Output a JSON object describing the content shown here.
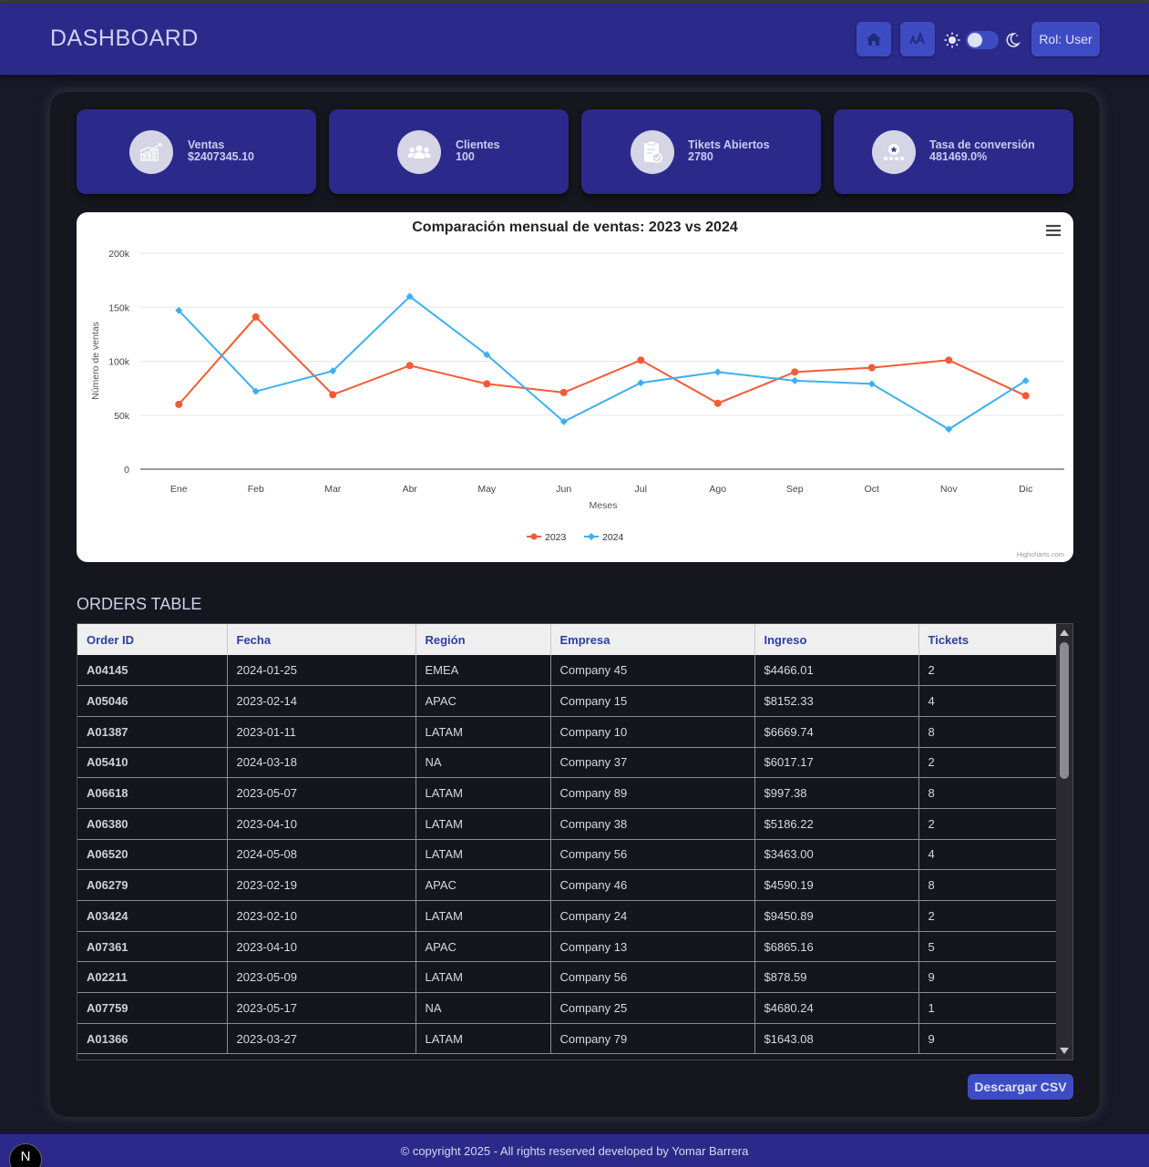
{
  "header": {
    "title": "DASHBOARD",
    "home_icon": "home-icon",
    "font_icon": "font-size-icon",
    "sun_icon": "sun-icon",
    "moon_icon": "moon-icon",
    "role_label": "Rol: User"
  },
  "cards": [
    {
      "label": "Ventas",
      "value": "$2407345.10",
      "icon": "chart-growth-icon"
    },
    {
      "label": "Clientes",
      "value": "100",
      "icon": "users-icon"
    },
    {
      "label": "Tikets Abiertos",
      "value": "2780",
      "icon": "clipboard-check-icon"
    },
    {
      "label": "Tasa de conversión",
      "value": "481469.0%",
      "icon": "conversion-icon"
    }
  ],
  "chart_data": {
    "type": "line",
    "title": "Comparación mensual de ventas: 2023 vs 2024",
    "xlabel": "Meses",
    "ylabel": "Número de ventas",
    "categories": [
      "Ene",
      "Feb",
      "Mar",
      "Abr",
      "May",
      "Jun",
      "Jul",
      "Ago",
      "Sep",
      "Oct",
      "Nov",
      "Dic"
    ],
    "ylim": [
      0,
      200000
    ],
    "yticks": [
      0,
      50000,
      100000,
      150000,
      200000
    ],
    "ytick_labels": [
      "0",
      "50k",
      "100k",
      "150k",
      "200k"
    ],
    "grid": true,
    "legend": "bottom-center",
    "credits": "Highcharts.com",
    "series": [
      {
        "name": "2023",
        "color": "#f45b34",
        "marker": "circle",
        "values": [
          60000,
          141000,
          69000,
          96000,
          79000,
          71000,
          101000,
          61000,
          90000,
          94000,
          101000,
          68000
        ]
      },
      {
        "name": "2024",
        "color": "#3bb0f0",
        "marker": "diamond",
        "values": [
          147000,
          72000,
          91000,
          160000,
          106000,
          44000,
          80000,
          90000,
          82000,
          79000,
          37000,
          82000
        ]
      }
    ]
  },
  "orders": {
    "title": "ORDERS TABLE",
    "columns": [
      "Order ID",
      "Fecha",
      "Región",
      "Empresa",
      "Ingreso",
      "Tickets"
    ],
    "rows": [
      [
        "A04145",
        "2024-01-25",
        "EMEA",
        "Company 45",
        "$4466.01",
        "2"
      ],
      [
        "A05046",
        "2023-02-14",
        "APAC",
        "Company 15",
        "$8152.33",
        "4"
      ],
      [
        "A01387",
        "2023-01-11",
        "LATAM",
        "Company 10",
        "$6669.74",
        "8"
      ],
      [
        "A05410",
        "2024-03-18",
        "NA",
        "Company 37",
        "$6017.17",
        "2"
      ],
      [
        "A06618",
        "2023-05-07",
        "LATAM",
        "Company 89",
        "$997.38",
        "8"
      ],
      [
        "A06380",
        "2023-04-10",
        "LATAM",
        "Company 38",
        "$5186.22",
        "2"
      ],
      [
        "A06520",
        "2024-05-08",
        "LATAM",
        "Company 56",
        "$3463.00",
        "4"
      ],
      [
        "A06279",
        "2023-02-19",
        "APAC",
        "Company 46",
        "$4590.19",
        "8"
      ],
      [
        "A03424",
        "2023-02-10",
        "LATAM",
        "Company 24",
        "$9450.89",
        "2"
      ],
      [
        "A07361",
        "2023-04-10",
        "APAC",
        "Company 13",
        "$6865.16",
        "5"
      ],
      [
        "A02211",
        "2023-05-09",
        "LATAM",
        "Company 56",
        "$878.59",
        "9"
      ],
      [
        "A07759",
        "2023-05-17",
        "NA",
        "Company 25",
        "$4680.24",
        "1"
      ],
      [
        "A01366",
        "2023-03-27",
        "LATAM",
        "Company 79",
        "$1643.08",
        "9"
      ]
    ],
    "download_label": "Descargar CSV"
  },
  "footer": {
    "text": "© copyright 2025 - All rights reserved developed by Yomar Barrera",
    "badge": "N"
  }
}
